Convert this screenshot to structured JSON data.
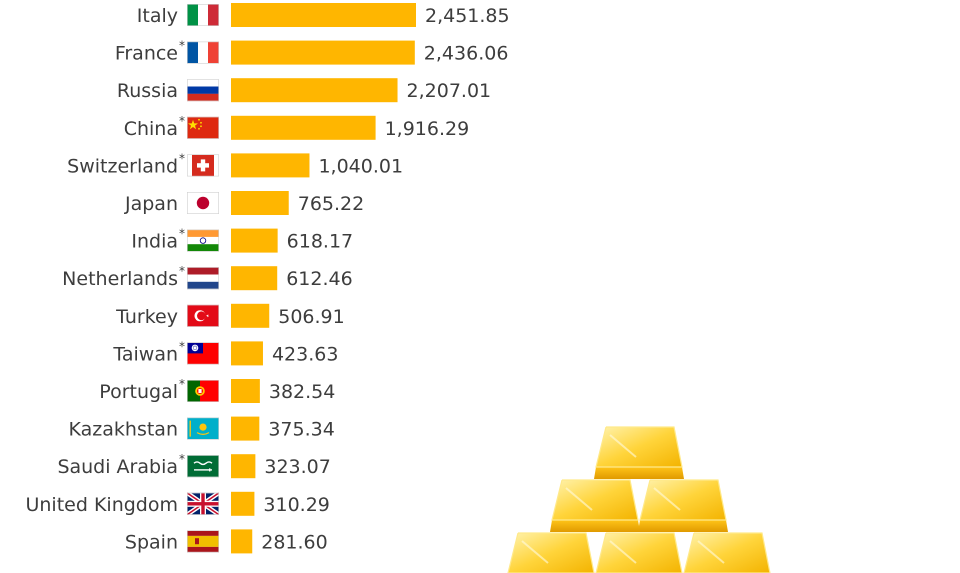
{
  "chart_data": {
    "type": "bar",
    "orientation": "horizontal",
    "categories": [
      "Italy",
      "France",
      "Russia",
      "China",
      "Switzerland",
      "Japan",
      "India",
      "Netherlands",
      "Turkey",
      "Taiwan",
      "Portugal",
      "Kazakhstan",
      "Saudi Arabia",
      "United Kingdom",
      "Spain"
    ],
    "asterisk": [
      false,
      true,
      false,
      true,
      true,
      false,
      true,
      true,
      false,
      true,
      true,
      false,
      true,
      false,
      false
    ],
    "values": [
      2451.85,
      2436.06,
      2207.01,
      1916.29,
      1040.01,
      765.22,
      618.17,
      612.46,
      506.91,
      423.63,
      382.54,
      375.34,
      323.07,
      310.29,
      281.6
    ],
    "value_labels": [
      "2,451.85",
      "2,436.06",
      "2,207.01",
      "1,916.29",
      "1,040.01",
      "765.22",
      "618.17",
      "612.46",
      "506.91",
      "423.63",
      "382.54",
      "375.34",
      "323.07",
      "310.29",
      "281.60"
    ],
    "asterisk_mark": "*",
    "flags": [
      "italy-flag",
      "france-flag",
      "russia-flag",
      "china-flag",
      "switzerland-flag",
      "japan-flag",
      "india-flag",
      "netherlands-flag",
      "turkey-flag",
      "taiwan-flag",
      "portugal-flag",
      "kazakhstan-flag",
      "saudi-arabia-flag",
      "uk-flag",
      "spain-flag"
    ],
    "bar_color": "#FFB600",
    "xlabel": "",
    "ylabel": "",
    "grid": false
  }
}
